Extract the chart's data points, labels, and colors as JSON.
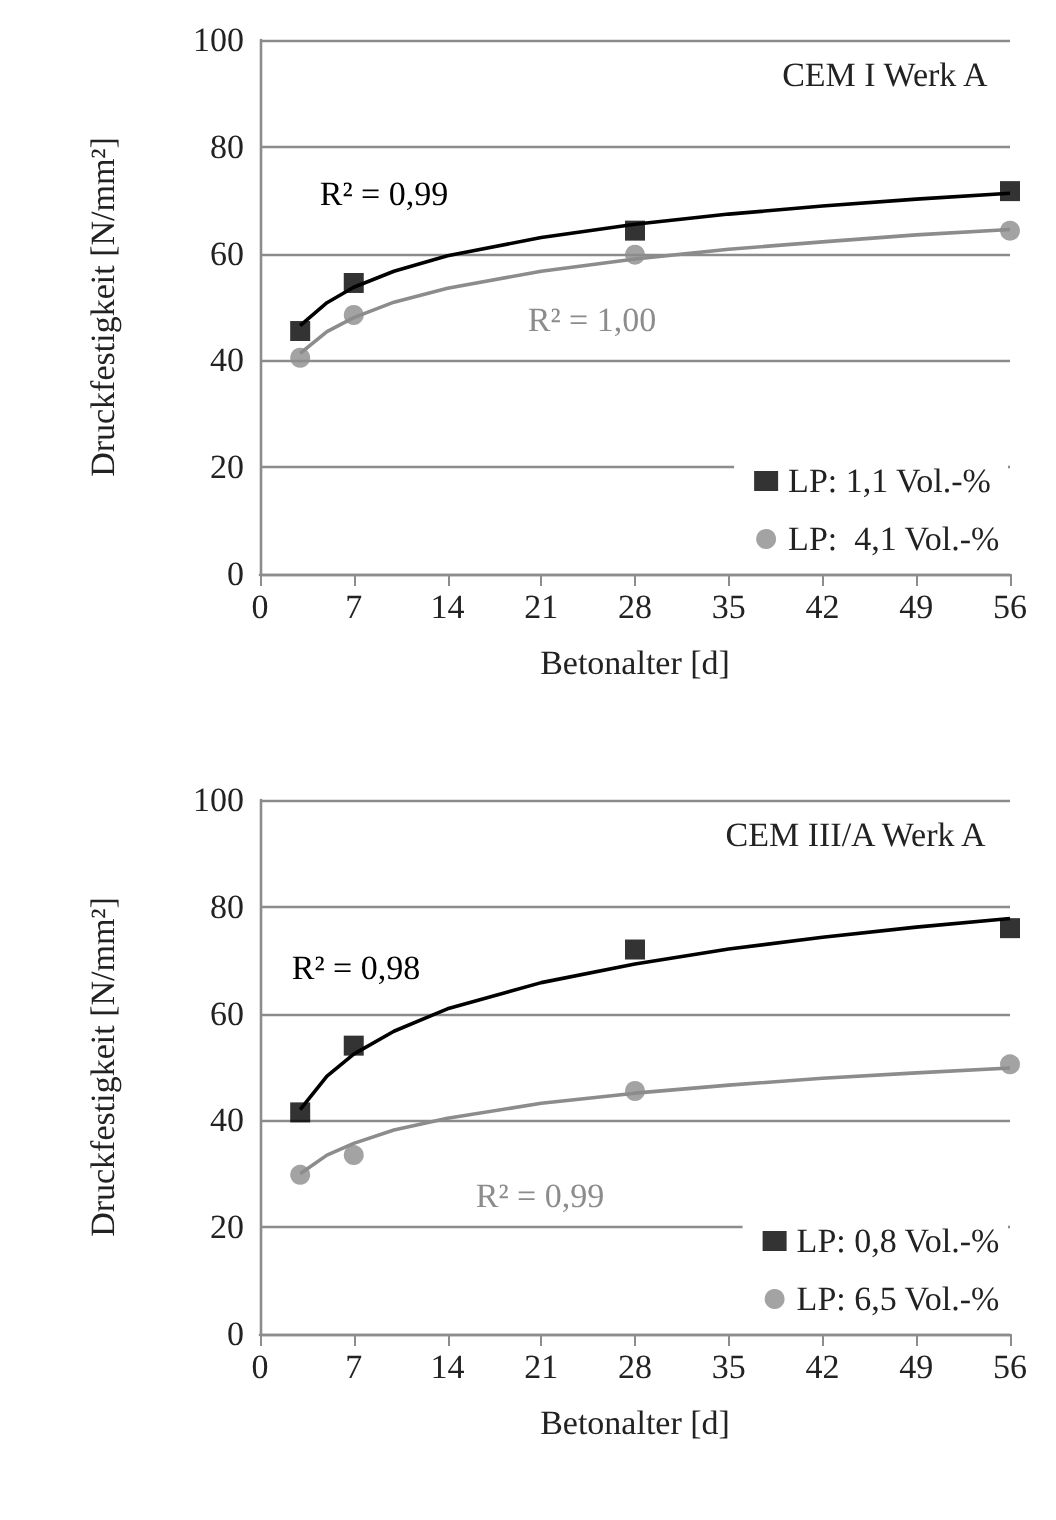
{
  "chart_data": [
    {
      "type": "scatter",
      "title": "CEM I Werk A",
      "xlabel": "Betonalter [d]",
      "ylabel": "Druckfestigkeit [N/mm²]",
      "xlim": [
        0,
        56
      ],
      "xticks": [
        0,
        7,
        14,
        21,
        28,
        35,
        42,
        49,
        56
      ],
      "ylim": [
        0,
        100
      ],
      "yticks": [
        0,
        20,
        40,
        60,
        80,
        100
      ],
      "grid": "y",
      "legend": "bottom right",
      "x": [
        3,
        7,
        28,
        56
      ],
      "series": [
        {
          "name": "LP: 1,1 Vol.-%",
          "color": "#000000",
          "marker": "square",
          "values": [
            45.5,
            54.5,
            64.3,
            71.7
          ]
        },
        {
          "name": "LP:  4,1 Vol.-%",
          "color": "#8c8c8c",
          "marker": "circle",
          "values": [
            40.5,
            48.5,
            59.8,
            64.3
          ]
        },
        {
          "type": "line",
          "color": "#000000",
          "marker": "none",
          "x": [
            3,
            5,
            7,
            10,
            14,
            21,
            28,
            35,
            42,
            49,
            56
          ],
          "values": [
            46.5,
            50.8,
            53.7,
            56.7,
            59.6,
            63.0,
            65.5,
            67.4,
            68.9,
            70.2,
            71.3
          ]
        },
        {
          "type": "line",
          "color": "#8c8c8c",
          "marker": "none",
          "x": [
            3,
            5,
            7,
            10,
            14,
            21,
            28,
            35,
            42,
            49,
            56
          ],
          "values": [
            41.3,
            45.4,
            48.0,
            50.9,
            53.5,
            56.7,
            59.0,
            60.8,
            62.2,
            63.5,
            64.5
          ]
        }
      ],
      "annotations": [
        "R² = 0,99",
        "R² = 1,00"
      ]
    },
    {
      "type": "scatter",
      "title": "CEM III/A Werk A",
      "xlabel": "Betonalter [d]",
      "ylabel": "Druckfestigkeit [N/mm²]",
      "xlim": [
        0,
        56
      ],
      "xticks": [
        0,
        7,
        14,
        21,
        28,
        35,
        42,
        49,
        56
      ],
      "ylim": [
        0,
        100
      ],
      "yticks": [
        0,
        20,
        40,
        60,
        80,
        100
      ],
      "grid": "y",
      "legend": "bottom right",
      "x": [
        3,
        7,
        28,
        56
      ],
      "series": [
        {
          "name": "LP: 0,8 Vol.-%",
          "color": "#000000",
          "marker": "square",
          "values": [
            41.5,
            54,
            72,
            76
          ]
        },
        {
          "name": "LP: 6,5 Vol.-%",
          "color": "#8c8c8c",
          "marker": "circle",
          "values": [
            29.8,
            33.5,
            45.5,
            50.5
          ]
        },
        {
          "type": "line",
          "color": "#000000",
          "marker": "none",
          "x": [
            3,
            5,
            7,
            10,
            14,
            21,
            28,
            35,
            42,
            49,
            56
          ],
          "values": [
            42.0,
            48.3,
            52.4,
            56.7,
            60.9,
            65.8,
            69.3,
            72.1,
            74.3,
            76.2,
            77.8
          ]
        },
        {
          "type": "line",
          "color": "#8c8c8c",
          "marker": "none",
          "x": [
            3,
            5,
            7,
            10,
            14,
            21,
            28,
            35,
            42,
            49,
            56
          ],
          "values": [
            30.0,
            33.5,
            35.7,
            38.2,
            40.4,
            43.2,
            45.1,
            46.6,
            47.9,
            48.9,
            49.8
          ]
        }
      ],
      "annotations": [
        "R² = 0,98",
        "R² = 0,99"
      ]
    }
  ]
}
